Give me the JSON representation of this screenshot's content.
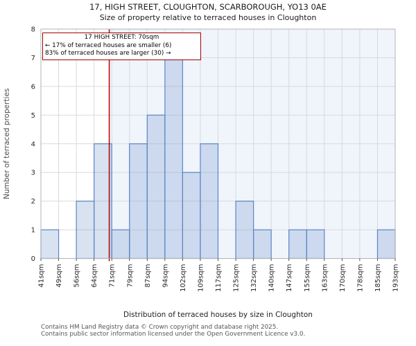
{
  "title": "17, HIGH STREET, CLOUGHTON, SCARBOROUGH, YO13 0AE",
  "subtitle": "Size of property relative to terraced houses in Cloughton",
  "annotation": {
    "line1": "17 HIGH STREET: 70sqm",
    "line2": "← 17% of terraced houses are smaller (6)",
    "line3": "83% of terraced houses are larger (30) →"
  },
  "footer": {
    "line1": "Contains HM Land Registry data © Crown copyright and database right 2025.",
    "line2": "Contains public sector information licensed under the Open Government Licence v3.0."
  },
  "chart_data": {
    "type": "bar",
    "title": "17, HIGH STREET, CLOUGHTON, SCARBOROUGH, YO13 0AE",
    "subtitle": "Size of property relative to terraced houses in Cloughton",
    "xlabel": "Distribution of terraced houses by size in Cloughton",
    "ylabel": "Number of terraced properties",
    "bin_edges_sqm": [
      41,
      49,
      56,
      64,
      71,
      79,
      87,
      94,
      102,
      109,
      117,
      125,
      132,
      140,
      147,
      155,
      163,
      170,
      178,
      185,
      193
    ],
    "bin_labels": [
      "41sqm",
      "49sqm",
      "56sqm",
      "64sqm",
      "71sqm",
      "79sqm",
      "87sqm",
      "94sqm",
      "102sqm",
      "109sqm",
      "117sqm",
      "125sqm",
      "132sqm",
      "140sqm",
      "147sqm",
      "155sqm",
      "163sqm",
      "170sqm",
      "178sqm",
      "185sqm",
      "193sqm"
    ],
    "values": [
      1,
      0,
      2,
      4,
      1,
      4,
      5,
      7,
      3,
      4,
      0,
      2,
      1,
      0,
      1,
      1,
      0,
      0,
      0,
      1
    ],
    "ylim": [
      0,
      8
    ],
    "yticks": [
      0,
      1,
      2,
      3,
      4,
      5,
      6,
      7,
      8
    ],
    "grid": true,
    "legend": false,
    "marker": {
      "sqm": 70,
      "label": "17 HIGH STREET",
      "smaller_pct": 17,
      "smaller_count": 6,
      "larger_pct": 83,
      "larger_count": 30
    },
    "shade_from_sqm": 70,
    "colors": {
      "bar_fill": "rgba(90,135,197,0.24)",
      "bar_stroke": "#5a87c5",
      "shade": "#f0f4fb",
      "grid": "#d9d9d9",
      "spine": "#b3b3b3",
      "marker_line": "#b80000",
      "annotation_border": "#a40000",
      "tick_text": "#262626",
      "x_axis_title": "#222222",
      "y_axis_title": "#4d4d4d",
      "title_text": "#1a1a1a",
      "footer_text": "#555555"
    }
  }
}
